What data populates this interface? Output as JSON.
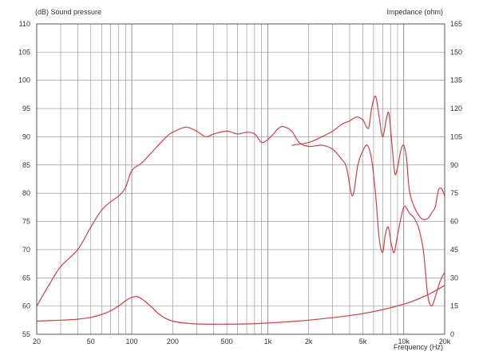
{
  "chart_data": {
    "type": "line",
    "left_axis_title": "(dB)  Sound pressure",
    "right_axis_title": "Impedance  (ohm)",
    "x_axis_title": "Frequency  (Hz)",
    "x_scale": "log",
    "xlim": [
      20,
      20000
    ],
    "ylim_left": [
      55,
      110
    ],
    "ylim_right": [
      0,
      165
    ],
    "grid": true,
    "x_tick_labels": [
      {
        "value": 20,
        "label": "20"
      },
      {
        "value": 50,
        "label": "50"
      },
      {
        "value": 100,
        "label": "100"
      },
      {
        "value": 200,
        "label": "200"
      },
      {
        "value": 500,
        "label": "500"
      },
      {
        "value": 1000,
        "label": "1k"
      },
      {
        "value": 2000,
        "label": "2k"
      },
      {
        "value": 5000,
        "label": "5k"
      },
      {
        "value": 10000,
        "label": "10k"
      },
      {
        "value": 20000,
        "label": "20k"
      }
    ],
    "y_left_ticks": [
      55,
      60,
      65,
      70,
      75,
      80,
      85,
      90,
      95,
      100,
      105,
      110
    ],
    "y_right_ticks": [
      0,
      15,
      30,
      45,
      60,
      75,
      90,
      105,
      120,
      135,
      150,
      165
    ],
    "series": [
      {
        "axis": "left",
        "color": "#d04040",
        "points": [
          [
            20,
            60
          ],
          [
            25,
            64
          ],
          [
            30,
            67
          ],
          [
            40,
            70
          ],
          [
            50,
            74
          ],
          [
            60,
            77
          ],
          [
            70,
            78.5
          ],
          [
            80,
            79.5
          ],
          [
            90,
            81
          ],
          [
            100,
            84
          ],
          [
            120,
            85.5
          ],
          [
            150,
            88
          ],
          [
            180,
            90
          ],
          [
            200,
            90.8
          ],
          [
            250,
            91.7
          ],
          [
            300,
            91
          ],
          [
            350,
            90
          ],
          [
            400,
            90.5
          ],
          [
            500,
            91
          ],
          [
            600,
            90.5
          ],
          [
            700,
            90.8
          ],
          [
            800,
            90.5
          ],
          [
            900,
            89
          ],
          [
            1000,
            89.5
          ],
          [
            1100,
            90.5
          ],
          [
            1200,
            91.5
          ],
          [
            1300,
            91.8
          ],
          [
            1500,
            91
          ],
          [
            1700,
            89
          ],
          [
            2000,
            88.3
          ],
          [
            2500,
            88.5
          ],
          [
            3000,
            87.8
          ],
          [
            3500,
            86
          ],
          [
            3800,
            84.5
          ],
          [
            4200,
            79.5
          ],
          [
            4600,
            85
          ],
          [
            5000,
            87.5
          ],
          [
            5400,
            88.5
          ],
          [
            5800,
            86
          ],
          [
            6200,
            80
          ],
          [
            6600,
            72
          ],
          [
            7000,
            69.5
          ],
          [
            7300,
            72.5
          ],
          [
            7700,
            74
          ],
          [
            8100,
            71
          ],
          [
            8500,
            69.5
          ],
          [
            9000,
            72.5
          ],
          [
            10000,
            77.5
          ],
          [
            11000,
            76.5
          ],
          [
            12000,
            75.5
          ],
          [
            13000,
            73.5
          ],
          [
            14000,
            69.5
          ],
          [
            15000,
            62
          ],
          [
            16000,
            60
          ],
          [
            17000,
            61.5
          ],
          [
            18000,
            63.5
          ],
          [
            19000,
            65
          ],
          [
            20000,
            66
          ]
        ]
      },
      {
        "axis": "left",
        "color": "#d04040",
        "points": [
          [
            1500,
            88.5
          ],
          [
            2000,
            89
          ],
          [
            2500,
            90
          ],
          [
            3000,
            91
          ],
          [
            3500,
            92.2
          ],
          [
            4000,
            92.8
          ],
          [
            4500,
            93.5
          ],
          [
            5000,
            93
          ],
          [
            5500,
            91.5
          ],
          [
            5800,
            95
          ],
          [
            6200,
            97.2
          ],
          [
            6600,
            93.5
          ],
          [
            7000,
            90
          ],
          [
            7500,
            93.5
          ],
          [
            7800,
            94
          ],
          [
            8200,
            88.5
          ],
          [
            8600,
            83.5
          ],
          [
            9000,
            84.5
          ],
          [
            9500,
            87.5
          ],
          [
            10000,
            88.5
          ],
          [
            10500,
            86
          ],
          [
            11000,
            80.5
          ],
          [
            12000,
            77.5
          ],
          [
            13500,
            75.5
          ],
          [
            15000,
            75.5
          ],
          [
            16000,
            76.5
          ],
          [
            17000,
            77.5
          ],
          [
            18000,
            80.5
          ],
          [
            19000,
            80.8
          ],
          [
            20000,
            79.5
          ]
        ]
      },
      {
        "axis": "right",
        "color": "#d04040",
        "points": [
          [
            20,
            7
          ],
          [
            30,
            7.5
          ],
          [
            40,
            8
          ],
          [
            50,
            9
          ],
          [
            60,
            10.5
          ],
          [
            70,
            12.5
          ],
          [
            80,
            15
          ],
          [
            90,
            17.8
          ],
          [
            100,
            19.6
          ],
          [
            110,
            20
          ],
          [
            120,
            18.5
          ],
          [
            140,
            14.5
          ],
          [
            160,
            10.5
          ],
          [
            200,
            7
          ],
          [
            300,
            5.5
          ],
          [
            500,
            5.4
          ],
          [
            700,
            5.5
          ],
          [
            1000,
            6
          ],
          [
            2000,
            7.5
          ],
          [
            5000,
            11
          ],
          [
            10000,
            16
          ],
          [
            15000,
            21
          ],
          [
            20000,
            26
          ]
        ]
      }
    ]
  }
}
